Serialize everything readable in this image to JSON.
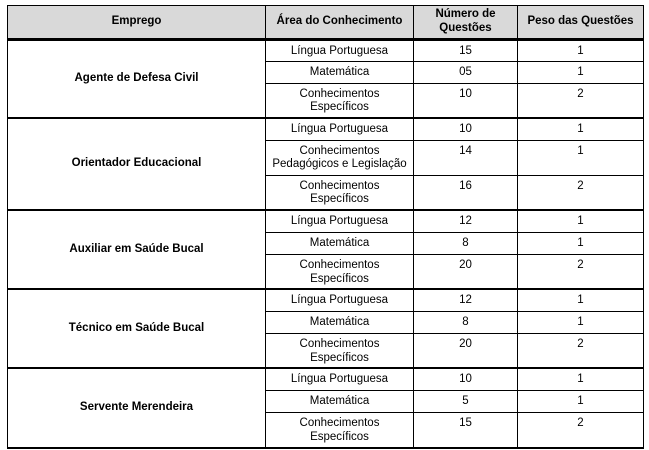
{
  "colors": {
    "header_background": "#d9d9d9",
    "border": "#000000",
    "text": "#000000",
    "page_background": "#ffffff"
  },
  "table": {
    "headers": [
      "Emprego",
      "Área do Conhecimento",
      "Número de Questões",
      "Peso das Questões"
    ],
    "groups": [
      {
        "job": "Agente de Defesa Civil",
        "rows": [
          {
            "area": "Língua Portuguesa",
            "questoes": "15",
            "peso": "1"
          },
          {
            "area": "Matemática",
            "questoes": "05",
            "peso": "1"
          },
          {
            "area": "Conhecimentos\nEspecíficos",
            "questoes": "10",
            "peso": "2"
          }
        ]
      },
      {
        "job": "Orientador Educacional",
        "rows": [
          {
            "area": "Língua Portuguesa",
            "questoes": "10",
            "peso": "1"
          },
          {
            "area": "Conhecimentos\nPedagógicos e Legislação",
            "questoes": "14",
            "peso": "1"
          },
          {
            "area": "Conhecimentos\nEspecíficos",
            "questoes": "16",
            "peso": "2"
          }
        ]
      },
      {
        "job": "Auxiliar em Saúde Bucal",
        "rows": [
          {
            "area": "Língua Portuguesa",
            "questoes": "12",
            "peso": "1"
          },
          {
            "area": "Matemática",
            "questoes": "8",
            "peso": "1"
          },
          {
            "area": "Conhecimentos\nEspecíficos",
            "questoes": "20",
            "peso": "2"
          }
        ]
      },
      {
        "job": "Técnico em Saúde Bucal",
        "rows": [
          {
            "area": "Língua Portuguesa",
            "questoes": "12",
            "peso": "1"
          },
          {
            "area": "Matemática",
            "questoes": "8",
            "peso": "1"
          },
          {
            "area": "Conhecimentos\nEspecíficos",
            "questoes": "20",
            "peso": "2"
          }
        ]
      },
      {
        "job": "Servente Merendeira",
        "rows": [
          {
            "area": "Língua Portuguesa",
            "questoes": "10",
            "peso": "1"
          },
          {
            "area": "Matemática",
            "questoes": "5",
            "peso": "1"
          },
          {
            "area": "Conhecimentos\nEspecíficos",
            "questoes": "15",
            "peso": "2"
          }
        ]
      }
    ]
  }
}
